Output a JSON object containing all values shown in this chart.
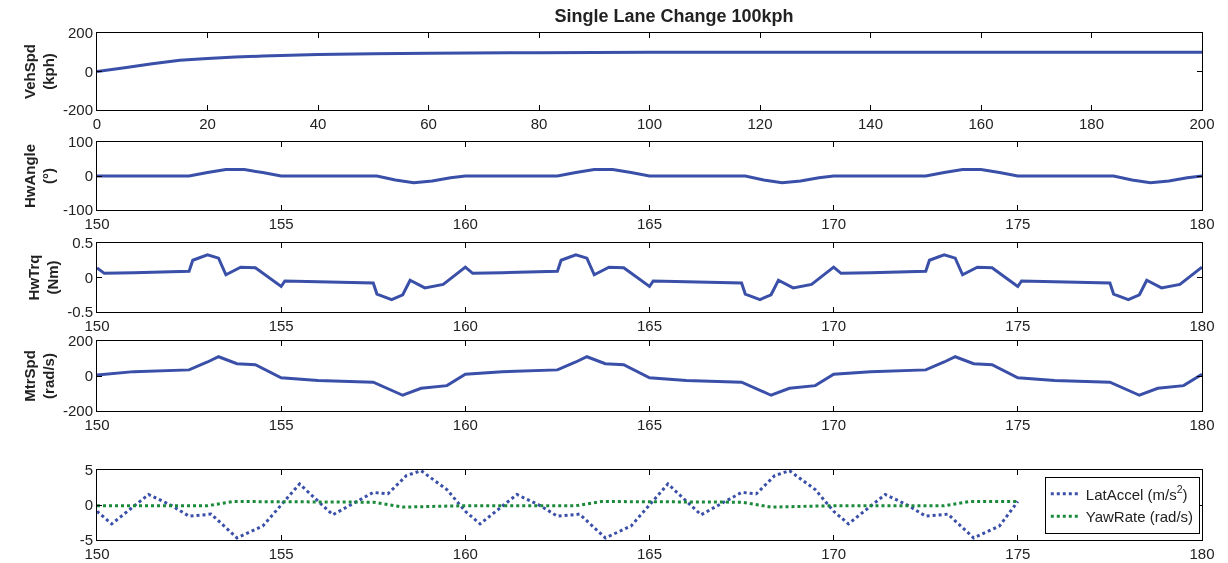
{
  "chart_data": [
    {
      "type": "line",
      "title": "Single Lane Change 100kph",
      "ylabel": "VehSpd\n(kph)",
      "xlim": [
        0,
        200
      ],
      "xticks": [
        0,
        20,
        40,
        60,
        80,
        100,
        120,
        140,
        160,
        180,
        200
      ],
      "ylim": [
        -200,
        200
      ],
      "yticks": [
        -200,
        0,
        200
      ],
      "series": [
        {
          "color": "#3a4fa8",
          "x": [
            0,
            5,
            10,
            15,
            20,
            25,
            30,
            40,
            50,
            60,
            80,
            100,
            150,
            200
          ],
          "values": [
            0,
            20,
            40,
            58,
            68,
            75,
            80,
            88,
            92,
            95,
            98,
            100,
            100,
            100
          ]
        }
      ]
    },
    {
      "type": "line",
      "ylabel": "HwAngle\n(°)",
      "xlim": [
        150,
        180
      ],
      "xticks": [
        150,
        155,
        160,
        165,
        170,
        175,
        180
      ],
      "ylim": [
        -100,
        100
      ],
      "yticks": [
        -100,
        0,
        100
      ],
      "series": [
        {
          "color": "#3a4fa8",
          "x": [
            150,
            152.5,
            153,
            153.5,
            154,
            154.5,
            155,
            157.6,
            158.1,
            158.6,
            159.1,
            159.6,
            160,
            162.5,
            163,
            163.5,
            164,
            164.5,
            165,
            167.6,
            168.1,
            168.6,
            169.1,
            169.6,
            170,
            172.5,
            173,
            173.5,
            174,
            174.5,
            175,
            177.6,
            178.1,
            178.6,
            179.1,
            179.6,
            180
          ],
          "values": [
            0,
            0,
            10,
            19,
            19,
            10,
            0,
            0,
            -12,
            -20,
            -15,
            -5,
            0,
            0,
            10,
            19,
            19,
            10,
            0,
            0,
            -12,
            -20,
            -15,
            -5,
            0,
            0,
            10,
            19,
            19,
            10,
            0,
            0,
            -12,
            -20,
            -15,
            -5,
            0
          ]
        }
      ]
    },
    {
      "type": "line",
      "ylabel": "HwTrq\n(Nm)",
      "xlim": [
        150,
        180
      ],
      "xticks": [
        150,
        155,
        160,
        165,
        170,
        175,
        180
      ],
      "ylim": [
        -0.5,
        0.5
      ],
      "yticks": [
        -0.5,
        0,
        0.5
      ],
      "series": [
        {
          "color": "#3a4fa8",
          "x": [
            150,
            150.2,
            151,
            152.5,
            152.6,
            153,
            153.3,
            153.5,
            153.9,
            154.3,
            155,
            155.1,
            157.5,
            157.6,
            158,
            158.3,
            158.5,
            158.9,
            159.4,
            160,
            160.2,
            161,
            162.5,
            162.6,
            163,
            163.3,
            163.5,
            163.9,
            164.3,
            165,
            165.1,
            167.5,
            167.6,
            168,
            168.3,
            168.5,
            168.9,
            169.4,
            170,
            170.2,
            171,
            172.5,
            172.6,
            173,
            173.3,
            173.5,
            173.9,
            174.3,
            175,
            175.1,
            177.5,
            177.6,
            178,
            178.3,
            178.5,
            178.9,
            179.4,
            180
          ],
          "values": [
            0.14,
            0.06,
            0.07,
            0.09,
            0.25,
            0.33,
            0.28,
            0.04,
            0.15,
            0.14,
            -0.13,
            -0.05,
            -0.08,
            -0.24,
            -0.32,
            -0.25,
            -0.04,
            -0.15,
            -0.1,
            0.15,
            0.06,
            0.07,
            0.09,
            0.25,
            0.33,
            0.28,
            0.04,
            0.15,
            0.14,
            -0.13,
            -0.05,
            -0.08,
            -0.24,
            -0.32,
            -0.25,
            -0.04,
            -0.15,
            -0.1,
            0.15,
            0.06,
            0.07,
            0.09,
            0.25,
            0.33,
            0.28,
            0.04,
            0.15,
            0.14,
            -0.13,
            -0.05,
            -0.08,
            -0.24,
            -0.32,
            -0.25,
            -0.04,
            -0.15,
            -0.1,
            0.15
          ]
        }
      ]
    },
    {
      "type": "line",
      "ylabel": "MtrSpd\n(rad/s)",
      "xlim": [
        150,
        180
      ],
      "xticks": [
        150,
        155,
        160,
        165,
        170,
        175,
        180
      ],
      "ylim": [
        -200,
        200
      ],
      "yticks": [
        -200,
        0,
        200
      ],
      "series": [
        {
          "color": "#3a4fa8",
          "x": [
            150,
            151,
            152.5,
            153,
            153.3,
            153.8,
            154.3,
            155,
            156,
            157.5,
            158.3,
            158.8,
            159.5,
            160,
            161,
            162.5,
            163,
            163.3,
            163.8,
            164.3,
            165,
            166,
            167.5,
            168.3,
            168.8,
            169.5,
            170,
            171,
            172.5,
            173,
            173.3,
            173.8,
            174.3,
            175,
            176,
            177.5,
            178.3,
            178.8,
            179.5,
            180
          ],
          "values": [
            5,
            25,
            35,
            80,
            110,
            70,
            65,
            -10,
            -25,
            -35,
            -110,
            -70,
            -55,
            10,
            25,
            35,
            80,
            110,
            70,
            65,
            -10,
            -25,
            -35,
            -110,
            -70,
            -55,
            10,
            25,
            35,
            80,
            110,
            70,
            65,
            -10,
            -25,
            -35,
            -110,
            -70,
            -55,
            10
          ]
        }
      ]
    },
    {
      "type": "line",
      "xlim": [
        150,
        180
      ],
      "xticks": [
        150,
        155,
        160,
        165,
        170,
        175,
        180
      ],
      "ylim": [
        -5,
        5
      ],
      "yticks": [
        -5,
        0,
        5
      ],
      "legend": "right",
      "line_style": "dotted",
      "series": [
        {
          "name": "LatAccel (m/s$^{2}$)",
          "color": "#3a4fa8",
          "x": [
            150,
            150.4,
            151.4,
            152,
            152.5,
            153.1,
            153.8,
            154.5,
            155.5,
            156.4,
            157.5,
            157.9,
            158.4,
            158.8,
            159.5,
            160,
            160.4,
            161.4,
            162,
            162.5,
            163.1,
            163.8,
            164.5,
            165.5,
            166.4,
            167.5,
            167.9,
            168.4,
            168.8,
            169.5,
            170,
            170.4,
            171.4,
            172,
            172.5,
            173.1,
            173.8,
            174.5,
            175
          ],
          "values": [
            -0.9,
            -2.7,
            1.5,
            0,
            -1.6,
            -1.3,
            -4.7,
            -3,
            3,
            -1.4,
            1.8,
            1.6,
            4.2,
            4.9,
            2.2,
            -0.9,
            -2.7,
            1.5,
            0,
            -1.6,
            -1.3,
            -4.7,
            -3,
            3,
            -1.4,
            1.8,
            1.6,
            4.2,
            4.9,
            2.2,
            -0.9,
            -2.7,
            1.5,
            0,
            -1.6,
            -1.3,
            -4.7,
            -3,
            0.5
          ]
        },
        {
          "name": "YawRate (rad/s)",
          "color": "#1a8a3a",
          "x": [
            150,
            153,
            153.7,
            157.5,
            158.3,
            160,
            163,
            163.7,
            167.5,
            168.3,
            170,
            173,
            173.7,
            175
          ],
          "values": [
            -0.1,
            -0.1,
            0.5,
            0.4,
            -0.3,
            -0.1,
            -0.1,
            0.5,
            0.4,
            -0.3,
            -0.1,
            -0.1,
            0.5,
            0.5
          ]
        }
      ]
    }
  ]
}
